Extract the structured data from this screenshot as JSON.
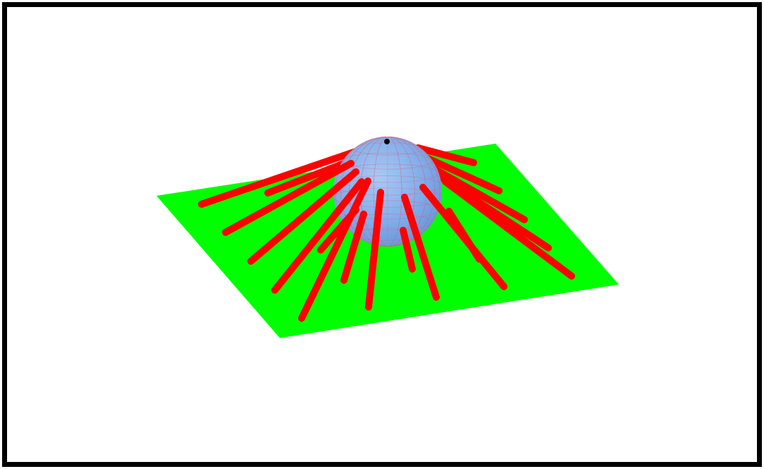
{
  "scene": {
    "background_color": "#ffffff",
    "frame_color": "#000000",
    "plane_color": "#00ff00",
    "sphere_color": "#7aa7e6",
    "sphere_mesh_color": "#e05a6a",
    "ray_color": "#ff0000",
    "apex_marker_color": "#000000",
    "objects": [
      "ground-plane",
      "sphere",
      "light-rays",
      "apex-point"
    ]
  }
}
